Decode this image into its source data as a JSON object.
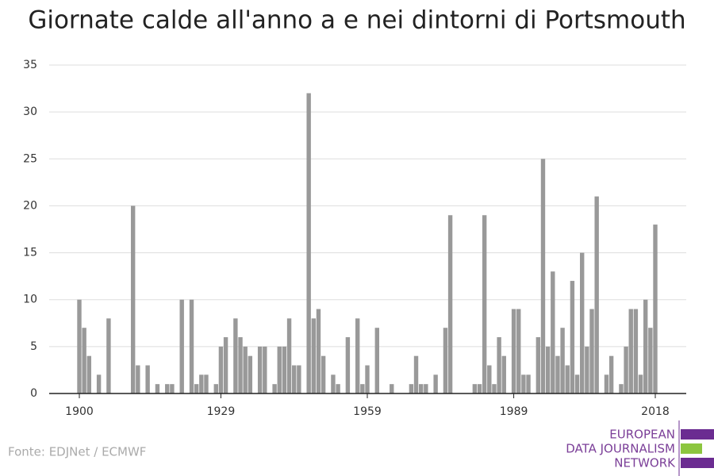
{
  "chart_data": {
    "type": "bar",
    "title": "Giornate calde all'anno a e nei dintorni di Portsmouth",
    "categories": [
      "1900",
      null,
      null,
      null,
      null,
      null,
      null,
      null,
      null,
      null,
      null,
      null,
      null,
      null,
      null,
      null,
      null,
      null,
      null,
      null,
      null,
      null,
      null,
      null,
      null,
      null,
      null,
      null,
      null,
      "1929",
      null,
      null,
      null,
      null,
      null,
      null,
      null,
      null,
      null,
      null,
      null,
      null,
      null,
      null,
      null,
      null,
      null,
      null,
      null,
      null,
      null,
      null,
      null,
      null,
      null,
      null,
      null,
      null,
      null,
      "1959",
      null,
      null,
      null,
      null,
      null,
      null,
      null,
      null,
      null,
      null,
      null,
      null,
      null,
      null,
      null,
      null,
      null,
      null,
      null,
      null,
      null,
      null,
      null,
      null,
      null,
      null,
      null,
      null,
      null,
      "1989",
      null,
      null,
      null,
      null,
      null,
      null,
      null,
      null,
      null,
      null,
      null,
      null,
      null,
      null,
      null,
      null,
      null,
      null,
      null,
      null,
      null,
      null,
      null,
      null,
      null,
      null,
      null,
      null,
      "2018"
    ],
    "values": [
      10,
      7,
      4,
      0,
      2,
      0,
      8,
      0,
      0,
      0,
      0,
      20,
      3,
      0,
      3,
      0,
      1,
      0,
      1,
      1,
      0,
      10,
      0,
      10,
      1,
      2,
      2,
      0,
      1,
      5,
      6,
      0,
      8,
      6,
      5,
      4,
      0,
      5,
      5,
      0,
      1,
      5,
      5,
      8,
      3,
      3,
      0,
      32,
      8,
      9,
      4,
      0,
      2,
      1,
      0,
      6,
      0,
      8,
      1,
      3,
      0,
      7,
      0,
      0,
      1,
      0,
      0,
      0,
      1,
      4,
      1,
      1,
      0,
      2,
      0,
      7,
      19,
      0,
      0,
      0,
      0,
      1,
      1,
      19,
      3,
      1,
      6,
      4,
      0,
      9,
      9,
      2,
      2,
      0,
      6,
      25,
      5,
      13,
      4,
      7,
      3,
      12,
      2,
      15,
      5,
      9,
      21,
      0,
      2,
      4,
      0,
      1,
      5,
      9,
      9,
      2,
      10,
      7,
      18
    ],
    "color": "#999999",
    "ylim": [
      0,
      35
    ],
    "yticks": [
      0,
      5,
      10,
      15,
      20,
      25,
      30,
      35
    ],
    "grid": true,
    "source": "Fonte: EDJNet / ECMWF"
  },
  "logo": {
    "lines": [
      "EUROPEAN",
      "DATA JOURNALISM",
      "NETWORK"
    ]
  }
}
